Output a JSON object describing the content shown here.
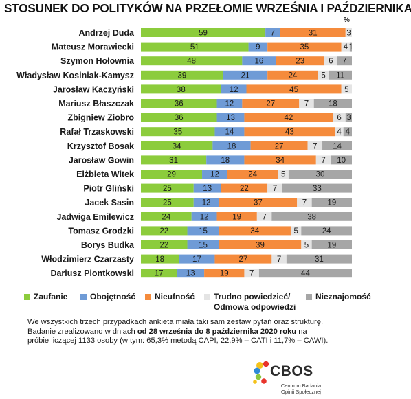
{
  "title": "STOSUNEK DO POLITYKÓW NA PRZEŁOMIE WRZEŚNIA I PAŹDZIERNIKA",
  "unit_label": "%",
  "chart_data": {
    "type": "bar",
    "orientation": "horizontal",
    "stacked": true,
    "categories": [
      "Andrzej Duda",
      "Mateusz Morawiecki",
      "Szymon Hołownia",
      "Władysław Kosiniak-Kamysz",
      "Jarosław Kaczyński",
      "Mariusz Błaszczak",
      "Zbigniew Ziobro",
      "Rafał Trzaskowski",
      "Krzysztof Bosak",
      "Jarosław Gowin",
      "Elżbieta Witek",
      "Piotr Gliński",
      "Jacek Sasin",
      "Jadwiga Emilewicz",
      "Tomasz Grodzki",
      "Borys Budka",
      "Włodzimierz Czarzasty",
      "Dariusz Piontkowski"
    ],
    "series": [
      {
        "name": "Zaufanie",
        "color": "#8ccc3c",
        "values": [
          59,
          51,
          48,
          39,
          38,
          36,
          36,
          35,
          34,
          31,
          29,
          25,
          25,
          24,
          22,
          22,
          18,
          17
        ]
      },
      {
        "name": "Obojętność",
        "color": "#6f9bd6",
        "values": [
          7,
          9,
          16,
          21,
          12,
          12,
          13,
          14,
          18,
          18,
          12,
          13,
          12,
          12,
          15,
          15,
          17,
          13
        ]
      },
      {
        "name": "Nieufność",
        "color": "#f58b3c",
        "values": [
          31,
          35,
          23,
          24,
          45,
          27,
          42,
          43,
          27,
          34,
          24,
          22,
          37,
          19,
          34,
          39,
          27,
          19
        ]
      },
      {
        "name": "Trudno powiedzieć/ Odmowa odpowiedzi",
        "color": "#e4e4e4",
        "values": [
          3,
          4,
          6,
          5,
          5,
          7,
          6,
          4,
          7,
          7,
          5,
          7,
          7,
          7,
          5,
          5,
          7,
          7
        ]
      },
      {
        "name": "Nieznajomość",
        "color": "#a6a6a6",
        "values": [
          0,
          1,
          7,
          11,
          0,
          18,
          3,
          4,
          14,
          10,
          30,
          33,
          19,
          38,
          24,
          19,
          31,
          44
        ]
      }
    ],
    "xlim": [
      0,
      100
    ],
    "grid": false,
    "legend_position": "bottom"
  },
  "legend": [
    {
      "label": "Zaufanie",
      "color": "#8ccc3c"
    },
    {
      "label": "Obojętność",
      "color": "#6f9bd6"
    },
    {
      "label": "Nieufność",
      "color": "#f58b3c"
    },
    {
      "label": "Trudno powiedzieć/",
      "label2": "Odmowa odpowiedzi",
      "color": "#e4e4e4"
    },
    {
      "label": "Nieznajomość",
      "color": "#a6a6a6"
    }
  ],
  "note": {
    "part1": "We wszystkich trzech przypadkach ankieta miała taki sam zestaw pytań oraz strukturę. Badanie zrealizowano w dniach ",
    "bold": "od 28 września do 8 października 2020 roku",
    "part2": " na próbie liczącej 1133 osoby (w tym: 65,3% metodą CAPI, 22,9% – CATI i 11,7% – CAWI)."
  },
  "logo": {
    "name": "CBOS",
    "subtitle_line1": "Centrum Badania",
    "subtitle_line2": "Opinii Społecznej"
  }
}
